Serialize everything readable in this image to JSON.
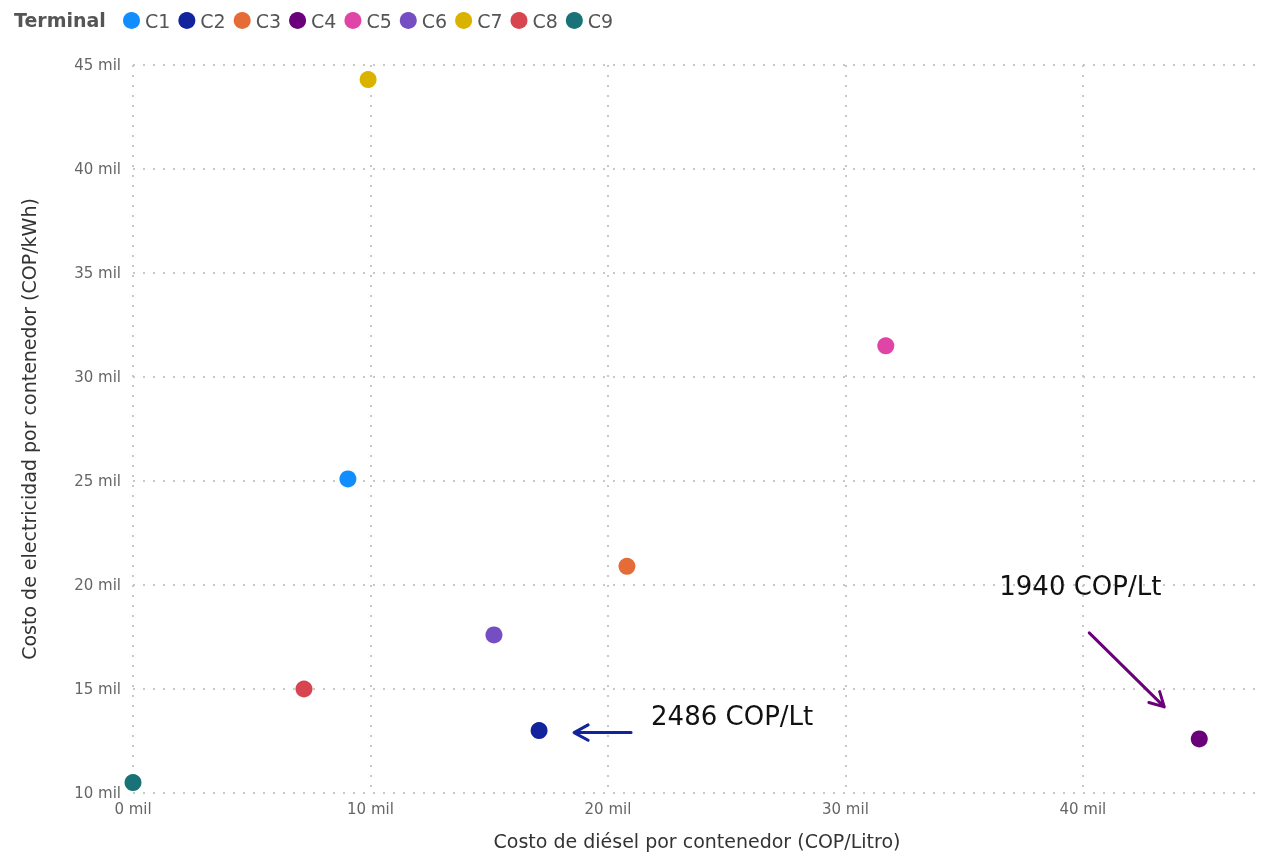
{
  "chart_data": {
    "type": "scatter",
    "legend_title": "Terminal",
    "xlabel": "Costo de diésel por contenedor (COP/Litro)",
    "ylabel": "Costo de electricidad por contenedor (COP/kWh)",
    "series": [
      {
        "name": "C1",
        "color": "#118dff",
        "x": [
          9.05
        ],
        "values": [
          25.1
        ]
      },
      {
        "name": "C2",
        "color": "#12239e",
        "x": [
          17.1
        ],
        "values": [
          13.0
        ]
      },
      {
        "name": "C3",
        "color": "#e66c37",
        "x": [
          20.8
        ],
        "values": [
          20.9
        ]
      },
      {
        "name": "C4",
        "color": "#6b007b",
        "x": [
          44.9
        ],
        "values": [
          12.6
        ]
      },
      {
        "name": "C5",
        "color": "#e044a7",
        "x": [
          31.7
        ],
        "values": [
          31.5
        ]
      },
      {
        "name": "C6",
        "color": "#744ec2",
        "x": [
          15.2
        ],
        "values": [
          17.6
        ]
      },
      {
        "name": "C7",
        "color": "#d9b300",
        "x": [
          9.9
        ],
        "values": [
          44.3
        ]
      },
      {
        "name": "C8",
        "color": "#d64550",
        "x": [
          7.2
        ],
        "values": [
          15.0
        ]
      },
      {
        "name": "C9",
        "color": "#197278",
        "x": [
          0
        ],
        "values": [
          10.5
        ]
      }
    ],
    "xlim": [
      0,
      47.5
    ],
    "ylim": [
      10,
      45
    ],
    "xticks": [
      {
        "value": 0,
        "label": "0 mil"
      },
      {
        "value": 10,
        "label": "10 mil"
      },
      {
        "value": 20,
        "label": "20 mil"
      },
      {
        "value": 30,
        "label": "30 mil"
      },
      {
        "value": 40,
        "label": "40 mil"
      }
    ],
    "yticks": [
      {
        "value": 10,
        "label": "10 mil"
      },
      {
        "value": 15,
        "label": "15 mil"
      },
      {
        "value": 20,
        "label": "20 mil"
      },
      {
        "value": 25,
        "label": "25 mil"
      },
      {
        "value": 30,
        "label": "30 mil"
      },
      {
        "value": 35,
        "label": "35 mil"
      },
      {
        "value": 40,
        "label": "40 mil"
      },
      {
        "value": 45,
        "label": "45 mil"
      }
    ],
    "annotations": [
      "2486 COP/Lt",
      "1940 COP/Lt"
    ],
    "grid": true,
    "legend": "top left",
    "marker": "circle"
  }
}
